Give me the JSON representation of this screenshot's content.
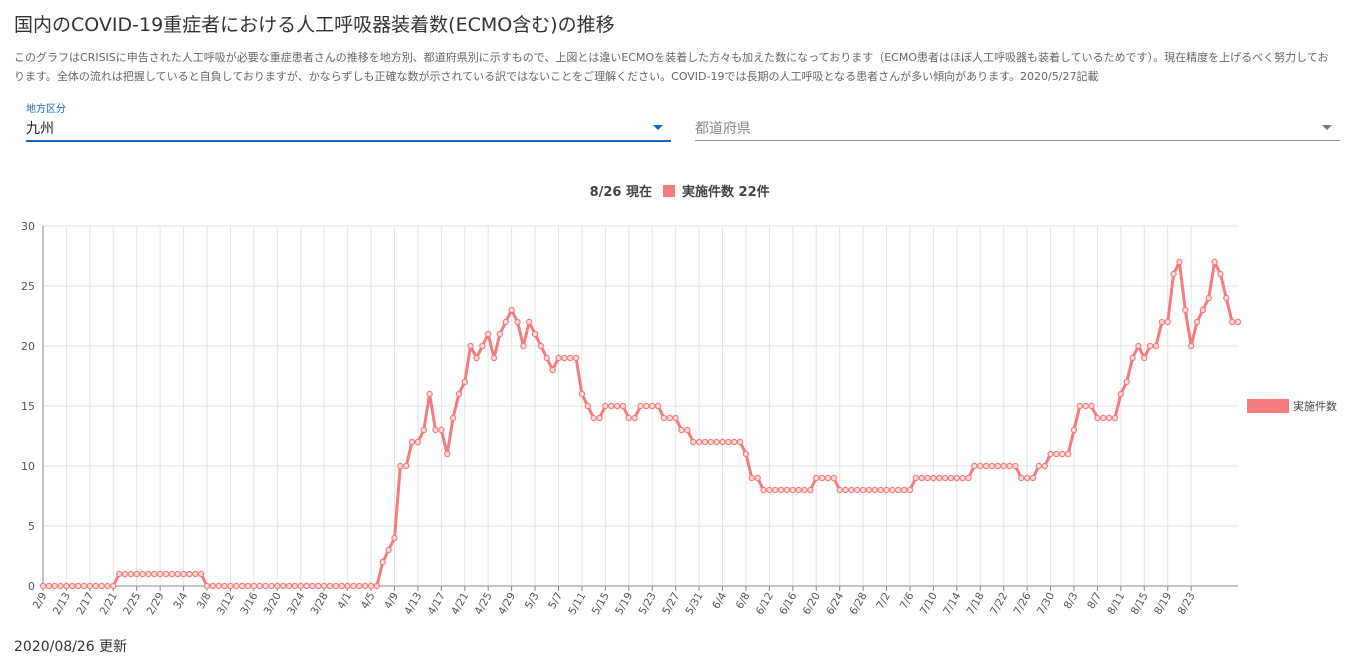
{
  "page": {
    "title": "国内のCOVID-19重症者における人工呼吸器装着数(ECMO含む)の推移",
    "description": "このグラフはCRISISに申告された人工呼吸が必要な重症患者さんの推移を地方別、都道府県別に示すもので、上図とは違いECMOを装着した方々も加えた数になっております（ECMO患者はほぼ人工呼吸器も装着しているためです）。現在精度を上げるべく努力しております。全体の流れは把握していると自負しておりますが、かならずしも正確な数が示されている訳ではないことをご理解ください。COVID-19では長期の人工呼吸となる患者さんが多い傾向があります。2020/5/27記載",
    "updated": "2020/08/26 更新"
  },
  "filters": {
    "region_label": "地方区分",
    "region_value": "九州",
    "prefecture_placeholder": "都道府県"
  },
  "colors": {
    "series": "#f47c7c",
    "grid": "#e4e4e4",
    "accent": "#1565c0"
  },
  "chart_data": {
    "type": "line",
    "header_date": "8/26 現在",
    "header_series": "実施件数 22件",
    "ylim": [
      0,
      30
    ],
    "yticks": [
      0,
      5,
      10,
      15,
      20,
      25,
      30
    ],
    "grid": true,
    "legend_position": "right",
    "start_date": "2/9",
    "tick_labels": [
      "2/9",
      "2/13",
      "2/17",
      "2/21",
      "2/25",
      "2/29",
      "3/4",
      "3/8",
      "3/12",
      "3/16",
      "3/20",
      "3/24",
      "3/28",
      "4/1",
      "4/5",
      "4/9",
      "4/13",
      "4/17",
      "4/21",
      "4/25",
      "4/29",
      "5/3",
      "5/7",
      "5/11",
      "5/15",
      "5/19",
      "5/23",
      "5/27",
      "5/31",
      "6/4",
      "6/8",
      "6/12",
      "6/16",
      "6/20",
      "6/24",
      "6/28",
      "7/2",
      "7/6",
      "7/10",
      "7/14",
      "7/18",
      "7/22",
      "7/26",
      "7/30",
      "8/3",
      "8/7",
      "8/11",
      "8/15",
      "8/19",
      "8/23"
    ],
    "series": [
      {
        "name": "実施件数",
        "values": [
          0,
          0,
          0,
          0,
          0,
          0,
          0,
          0,
          0,
          0,
          0,
          0,
          0,
          1,
          1,
          1,
          1,
          1,
          1,
          1,
          1,
          1,
          1,
          1,
          1,
          1,
          1,
          1,
          0,
          0,
          0,
          0,
          0,
          0,
          0,
          0,
          0,
          0,
          0,
          0,
          0,
          0,
          0,
          0,
          0,
          0,
          0,
          0,
          0,
          0,
          0,
          0,
          0,
          0,
          0,
          0,
          0,
          0,
          2,
          3,
          4,
          10,
          10,
          12,
          12,
          13,
          16,
          13,
          13,
          11,
          14,
          16,
          17,
          20,
          19,
          20,
          21,
          19,
          21,
          22,
          23,
          22,
          20,
          22,
          21,
          20,
          19,
          18,
          19,
          19,
          19,
          19,
          16,
          15,
          14,
          14,
          15,
          15,
          15,
          15,
          14,
          14,
          15,
          15,
          15,
          15,
          14,
          14,
          14,
          13,
          13,
          12,
          12,
          12,
          12,
          12,
          12,
          12,
          12,
          12,
          11,
          9,
          9,
          8,
          8,
          8,
          8,
          8,
          8,
          8,
          8,
          8,
          9,
          9,
          9,
          9,
          8,
          8,
          8,
          8,
          8,
          8,
          8,
          8,
          8,
          8,
          8,
          8,
          8,
          9,
          9,
          9,
          9,
          9,
          9,
          9,
          9,
          9,
          9,
          10,
          10,
          10,
          10,
          10,
          10,
          10,
          10,
          9,
          9,
          9,
          10,
          10,
          11,
          11,
          11,
          11,
          13,
          15,
          15,
          15,
          14,
          14,
          14,
          14,
          16,
          17,
          19,
          20,
          19,
          20,
          20,
          22,
          22,
          26,
          27,
          23,
          20,
          22,
          23,
          24,
          27,
          26,
          24,
          22,
          22
        ]
      }
    ]
  }
}
